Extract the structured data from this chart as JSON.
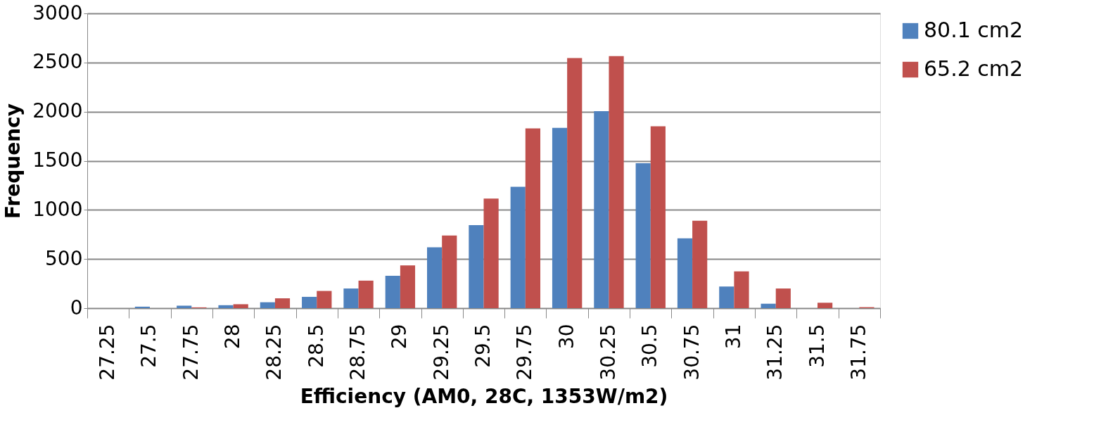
{
  "chart_data": {
    "type": "bar",
    "xlabel": "Efficiency (AM0, 28C, 1353W/m2)",
    "ylabel": "Frequency",
    "categories": [
      "27.25",
      "27.5",
      "27.75",
      "28",
      "28.25",
      "28.5",
      "28.75",
      "29",
      "29.25",
      "29.5",
      "29.75",
      "30",
      "30.25",
      "30.5",
      "30.75",
      "31",
      "31.25",
      "31.5",
      "31.75"
    ],
    "series": [
      {
        "name": "80.1 cm2",
        "color": "#4f81bd",
        "values": [
          0,
          15,
          25,
          30,
          60,
          115,
          200,
          330,
          620,
          845,
          1235,
          1835,
          2005,
          1475,
          710,
          220,
          45,
          0,
          0
        ]
      },
      {
        "name": "65.2 cm2",
        "color": "#c0504d",
        "values": [
          0,
          0,
          8,
          40,
          100,
          175,
          280,
          435,
          740,
          1115,
          1830,
          2545,
          2565,
          1850,
          890,
          375,
          200,
          55,
          10
        ]
      }
    ],
    "ylim": [
      0,
      3000
    ],
    "yticks": [
      0,
      500,
      1000,
      1500,
      2000,
      2500,
      3000
    ],
    "grid": "y",
    "legend": "right"
  }
}
